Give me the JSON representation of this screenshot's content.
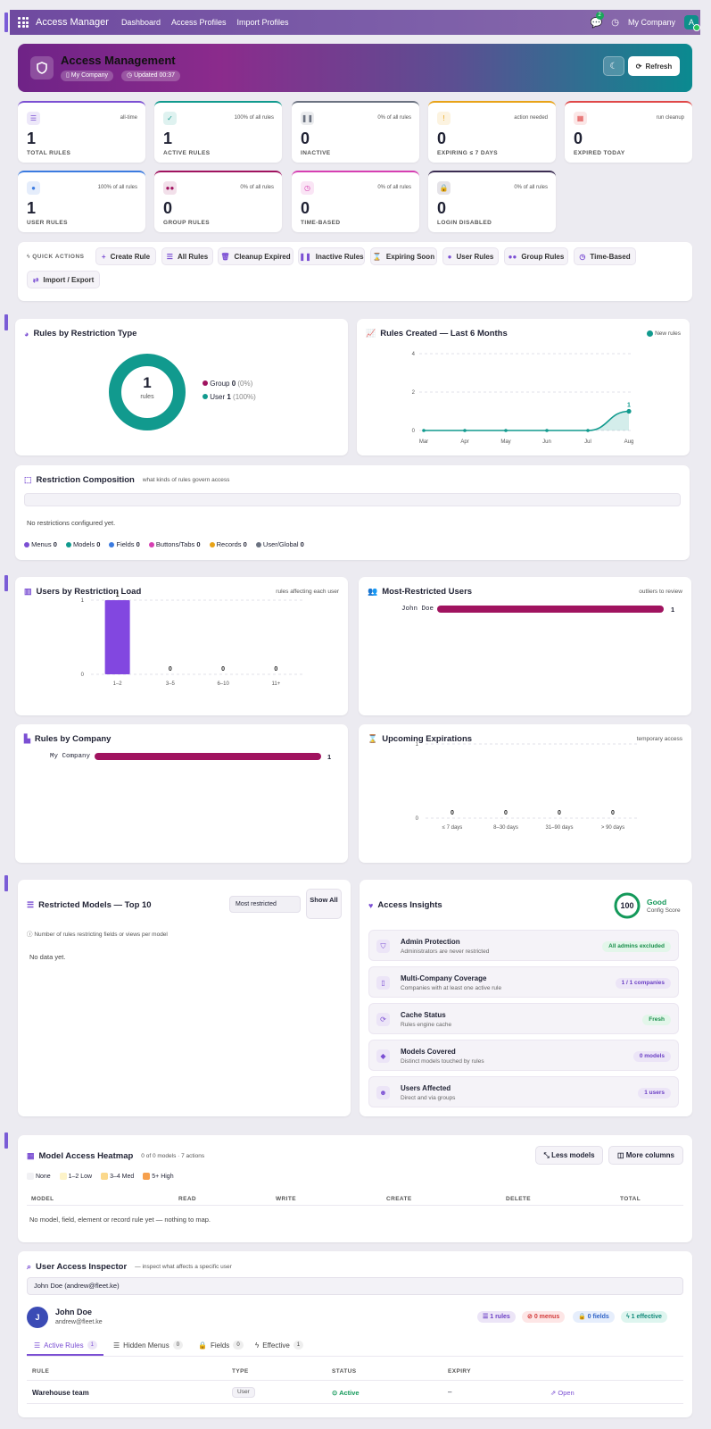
{
  "topbar": {
    "app_title": "Access Manager",
    "nav": [
      "Dashboard",
      "Access Profiles",
      "Import Profiles"
    ],
    "chat_count": "2",
    "company": "My Company",
    "avatar": "A"
  },
  "hero": {
    "title": "Access Management",
    "company_pill": "My Company",
    "updated_pill": "Updated 00:37",
    "refresh_label": "Refresh"
  },
  "stats": [
    {
      "hint": "all-time",
      "value": "1",
      "label": "TOTAL RULES",
      "icon": "list-icon",
      "color": "#7b4fd3"
    },
    {
      "hint": "100% of all rules",
      "value": "1",
      "label": "ACTIVE RULES",
      "icon": "check-icon",
      "color": "#119a8e"
    },
    {
      "hint": "0% of all rules",
      "value": "0",
      "label": "INACTIVE",
      "icon": "pause-icon",
      "color": "#6b7280"
    },
    {
      "hint": "action needed",
      "value": "0",
      "label": "EXPIRING ≤ 7 DAYS",
      "icon": "warning-icon",
      "color": "#e8a317"
    },
    {
      "hint": "run cleanup",
      "value": "0",
      "label": "EXPIRED TODAY",
      "icon": "calendar-icon",
      "color": "#e04848"
    },
    {
      "hint": "100% of all rules",
      "value": "1",
      "label": "USER RULES",
      "icon": "user-icon",
      "color": "#3b7be0"
    },
    {
      "hint": "0% of all rules",
      "value": "0",
      "label": "GROUP RULES",
      "icon": "group-icon",
      "color": "#a0135f"
    },
    {
      "hint": "0% of all rules",
      "value": "0",
      "label": "TIME-BASED",
      "icon": "clock-icon",
      "color": "#d63fb2"
    },
    {
      "hint": "0% of all rules",
      "value": "0",
      "label": "LOGIN DISABLED",
      "icon": "lock-icon",
      "color": "#3b2d52"
    }
  ],
  "quick_actions": {
    "title": "QUICK ACTIONS",
    "buttons": [
      "Create Rule",
      "All Rules",
      "Cleanup Expired",
      "Inactive Rules",
      "Expiring Soon",
      "User Rules",
      "Group Rules",
      "Time-Based",
      "Import / Export"
    ]
  },
  "restriction_type": {
    "title": "Rules by Restriction Type",
    "center_value": "1",
    "center_label": "rules",
    "legend": [
      {
        "name": "Group",
        "count": "0",
        "pct": "(0%)",
        "color": "#a0135f"
      },
      {
        "name": "User",
        "count": "1",
        "pct": "(100%)",
        "color": "#119a8e"
      }
    ]
  },
  "rules_created": {
    "title": "Rules Created — Last 6 Months",
    "legend": "New rules"
  },
  "composition": {
    "title": "Restriction Composition",
    "subtitle": "what kinds of rules govern access",
    "empty": "No restrictions configured yet.",
    "legend": [
      {
        "name": "Menus",
        "count": "0",
        "color": "#7b4fd3"
      },
      {
        "name": "Models",
        "count": "0",
        "color": "#119a8e"
      },
      {
        "name": "Fields",
        "count": "0",
        "color": "#3b7be0"
      },
      {
        "name": "Buttons/Tabs",
        "count": "0",
        "color": "#d63fb2"
      },
      {
        "name": "Records",
        "count": "0",
        "color": "#e8a317"
      },
      {
        "name": "User/Global",
        "count": "0",
        "color": "#6b7280"
      }
    ]
  },
  "users_load": {
    "title": "Users by Restriction Load",
    "subtitle": "rules affecting each user"
  },
  "most_restricted": {
    "title": "Most-Restricted Users",
    "subtitle": "outliers to review",
    "rows": [
      {
        "name": "John Doe",
        "value": "1"
      }
    ]
  },
  "by_company": {
    "title": "Rules by Company",
    "rows": [
      {
        "name": "My Company",
        "value": "1"
      }
    ]
  },
  "upcoming": {
    "title": "Upcoming Expirations",
    "subtitle": "temporary access"
  },
  "models": {
    "title": "Restricted Models — Top 10",
    "select": "Most restricted",
    "show_all": "Show All",
    "note": "Number of rules restricting fields or views per model",
    "empty": "No data yet."
  },
  "insights": {
    "title": "Access Insights",
    "score": "100",
    "score_label": "Good",
    "score_sub": "Config Score",
    "items": [
      {
        "title": "Admin Protection",
        "sub": "Administrators are never restricted",
        "badge": "All admins excluded",
        "icon": "shield-icon",
        "bg": "#e3f6ea",
        "fg": "#1a8f4c"
      },
      {
        "title": "Multi-Company Coverage",
        "sub": "Companies with at least one active rule",
        "badge": "1 / 1 companies",
        "icon": "building-icon",
        "bg": "#ece5f7",
        "fg": "#6b3fc4"
      },
      {
        "title": "Cache Status",
        "sub": "Rules engine cache",
        "badge": "Fresh",
        "icon": "refresh-icon",
        "bg": "#e3f6ea",
        "fg": "#1a8f4c"
      },
      {
        "title": "Models Covered",
        "sub": "Distinct models touched by rules",
        "badge": "0 models",
        "icon": "cubes-icon",
        "bg": "#ece5f7",
        "fg": "#6b3fc4"
      },
      {
        "title": "Users Affected",
        "sub": "Direct and via groups",
        "badge": "1 users",
        "icon": "user-circle-icon",
        "bg": "#ece5f7",
        "fg": "#6b3fc4"
      }
    ]
  },
  "heatmap": {
    "title": "Model Access Heatmap",
    "subtitle": "0 of 0 models · 7 actions",
    "less": "Less models",
    "more": "More columns",
    "legend": [
      {
        "name": "None",
        "color": "#f1f1f4"
      },
      {
        "name": "1–2 Low",
        "color": "#fdf3c8"
      },
      {
        "name": "3–4 Med",
        "color": "#fbd88b"
      },
      {
        "name": "5+ High",
        "color": "#f6a04d"
      }
    ],
    "columns": [
      "MODEL",
      "READ",
      "WRITE",
      "CREATE",
      "DELETE",
      "TOTAL"
    ],
    "empty": "No model, field, element or record rule yet — nothing to map."
  },
  "inspector": {
    "title": "User Access Inspector",
    "subtitle": "— inspect what affects a specific user",
    "select": "John Doe (andrew@fleet.ke)",
    "user_initial": "J",
    "user_name": "John Doe",
    "user_email": "andrew@fleet.ke",
    "chips": [
      {
        "label": "1 rules",
        "bg": "#ece5f7",
        "fg": "#6b3fc4"
      },
      {
        "label": "0 menus",
        "bg": "#fde6e6",
        "fg": "#d23b3b"
      },
      {
        "label": "0 fields",
        "bg": "#e6eefc",
        "fg": "#2f63c6"
      },
      {
        "label": "1 effective",
        "bg": "#def5ef",
        "fg": "#128a7a"
      }
    ],
    "tabs": [
      {
        "label": "Active Rules",
        "count": "1"
      },
      {
        "label": "Hidden Menus",
        "count": "0"
      },
      {
        "label": "Fields",
        "count": "0"
      },
      {
        "label": "Effective",
        "count": "1"
      }
    ],
    "columns": [
      "RULE",
      "TYPE",
      "STATUS",
      "EXPIRY"
    ],
    "row": {
      "rule": "Warehouse team",
      "type": "User",
      "status": "Active",
      "expiry": "–",
      "action": "Open"
    }
  },
  "chart_data": [
    {
      "type": "pie",
      "title": "Rules by Restriction Type",
      "categories": [
        "Group",
        "User"
      ],
      "values": [
        0,
        1
      ]
    },
    {
      "type": "area",
      "title": "Rules Created — Last 6 Months",
      "x": [
        "Mar",
        "Apr",
        "May",
        "Jun",
        "Jul",
        "Aug"
      ],
      "series": [
        {
          "name": "New rules",
          "values": [
            0,
            0,
            0,
            0,
            0,
            1
          ]
        }
      ],
      "ylim": [
        0,
        4
      ],
      "yticks": [
        0,
        2,
        4
      ]
    },
    {
      "type": "bar",
      "title": "Users by Restriction Load",
      "categories": [
        "1–2",
        "3–5",
        "6–10",
        "11+"
      ],
      "values": [
        1,
        0,
        0,
        0
      ],
      "ylim": [
        0,
        1
      ]
    },
    {
      "type": "bar",
      "title": "Upcoming Expirations",
      "categories": [
        "≤ 7 days",
        "8–30 days",
        "31–90 days",
        "> 90 days"
      ],
      "values": [
        0,
        0,
        0,
        0
      ],
      "ylim": [
        0,
        1
      ]
    },
    {
      "type": "bar",
      "title": "Most-Restricted Users",
      "categories": [
        "John Doe"
      ],
      "values": [
        1
      ]
    },
    {
      "type": "bar",
      "title": "Rules by Company",
      "categories": [
        "My Company"
      ],
      "values": [
        1
      ]
    }
  ]
}
